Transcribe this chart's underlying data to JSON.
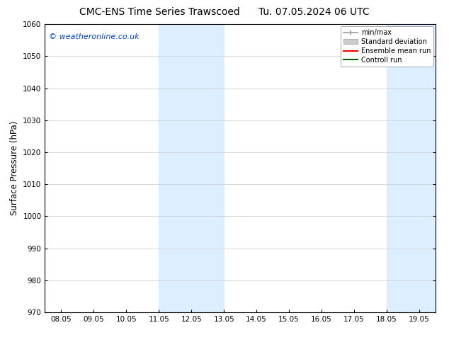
{
  "title_left": "CMC-ENS Time Series Trawscoed",
  "title_right": "Tu. 07.05.2024 06 UTC",
  "ylabel": "Surface Pressure (hPa)",
  "ylim": [
    970,
    1060
  ],
  "yticks": [
    970,
    980,
    990,
    1000,
    1010,
    1020,
    1030,
    1040,
    1050,
    1060
  ],
  "xtick_labels": [
    "08.05",
    "09.05",
    "10.05",
    "11.05",
    "12.05",
    "13.05",
    "14.05",
    "15.05",
    "16.05",
    "17.05",
    "18.05",
    "19.05"
  ],
  "xtick_positions": [
    0,
    1,
    2,
    3,
    4,
    5,
    6,
    7,
    8,
    9,
    10,
    11
  ],
  "xlim": [
    -0.5,
    11.5
  ],
  "shade_bands": [
    {
      "x_start": 3.0,
      "x_end": 5.0,
      "color": "#ddeeff"
    },
    {
      "x_start": 10.0,
      "x_end": 11.5,
      "color": "#ddeeff"
    }
  ],
  "watermark": "© weatheronline.co.uk",
  "watermark_color": "#0044cc",
  "background_color": "#ffffff",
  "legend_items": [
    {
      "label": "min/max",
      "color": "#999999",
      "type": "errorbar"
    },
    {
      "label": "Standard deviation",
      "color": "#cccccc",
      "type": "fill"
    },
    {
      "label": "Ensemble mean run",
      "color": "#ff0000",
      "type": "line"
    },
    {
      "label": "Controll run",
      "color": "#006600",
      "type": "line"
    }
  ],
  "grid_color": "#cccccc",
  "title_fontsize": 10,
  "tick_fontsize": 7.5,
  "ylabel_fontsize": 8.5,
  "watermark_fontsize": 8
}
